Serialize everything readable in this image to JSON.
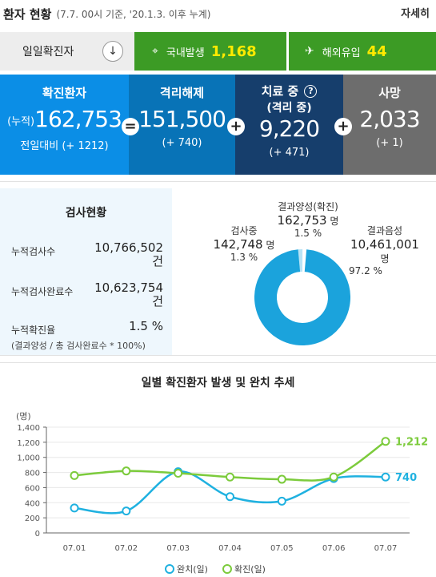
{
  "header": {
    "title": "환자 현황",
    "subtitle": "(7.7. 00시 기준, '20.1.3. 이후 누계)",
    "detail_link": "자세히"
  },
  "daily": {
    "label": "일일확진자",
    "domestic_label": "국내발생",
    "domestic_value": "1,168",
    "overseas_label": "해외유입",
    "overseas_value": "44"
  },
  "stats": {
    "confirmed": {
      "label": "확진환자",
      "prefix": "(누적)",
      "value": "162,753",
      "delta": "전일대비 (+ 1212)"
    },
    "released": {
      "label": "격리해제",
      "value": "151,500",
      "delta": "(+ 740)"
    },
    "treating": {
      "label": "치료 중",
      "sublabel": "(격리 중)",
      "value": "9,220",
      "delta": "(+ 471)"
    },
    "deaths": {
      "label": "사망",
      "value": "2,033",
      "delta": "(+ 1)"
    }
  },
  "testing": {
    "title": "검사현황",
    "rows": [
      {
        "label": "누적검사수",
        "value": "10,766,502",
        "unit": "건"
      },
      {
        "label": "누적검사완료수",
        "value": "10,623,754",
        "unit": "건"
      },
      {
        "label": "누적확진율",
        "value": "1.5 %"
      }
    ],
    "note": "(결과양성 / 총 검사완료수 * 100%)",
    "donut": {
      "positive": {
        "label": "결과양성(확진)",
        "value": "162,753",
        "unit": "명",
        "pct": "1.5 %",
        "share": 1.5
      },
      "pending": {
        "label": "검사중",
        "value": "142,748",
        "unit": "명",
        "pct": "1.3 %",
        "share": 1.3
      },
      "negative": {
        "label": "결과음성",
        "value": "10,461,001",
        "unit": "명",
        "pct": "97.2 %",
        "share": 97.2
      }
    }
  },
  "colors": {
    "release": "#1fb1e0",
    "confirm": "#7ccb3c"
  },
  "chart_data": {
    "type": "line",
    "title": "일별 확진환자 발생 및 완치 추세",
    "ylabel": "(명)",
    "ylim": [
      0,
      1400
    ],
    "yticks": [
      "0",
      "200",
      "400",
      "600",
      "800",
      "1,000",
      "1,200",
      "1,400"
    ],
    "categories": [
      "07.01",
      "07.02",
      "07.03",
      "07.04",
      "07.05",
      "07.06",
      "07.07"
    ],
    "series": [
      {
        "name": "완치(일)",
        "values": [
          330,
          290,
          810,
          480,
          420,
          720,
          740
        ],
        "end_label": "740"
      },
      {
        "name": "확진(일)",
        "values": [
          760,
          820,
          790,
          740,
          710,
          740,
          1212
        ],
        "end_label": "1,212"
      }
    ],
    "legend": "bottom"
  }
}
